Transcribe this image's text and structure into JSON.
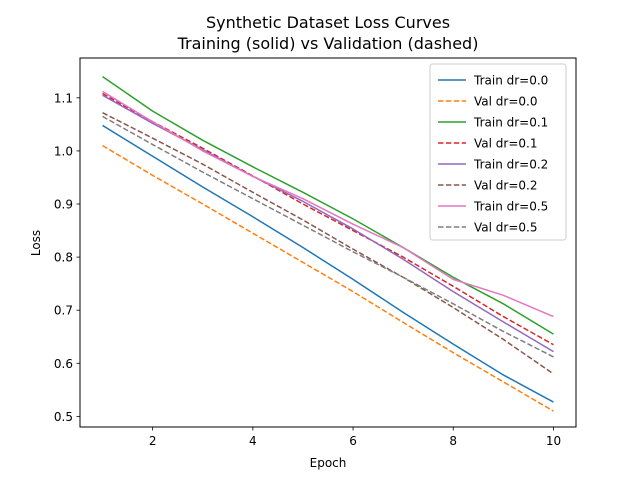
{
  "chart_data": {
    "type": "line",
    "title": "Synthetic Dataset Loss Curves",
    "subtitle": "Training (solid) vs Validation (dashed)",
    "xlabel": "Epoch",
    "ylabel": "Loss",
    "xlim": [
      0.55,
      10.45
    ],
    "ylim": [
      0.48,
      1.175
    ],
    "xticks": [
      2,
      4,
      6,
      8,
      10
    ],
    "yticks": [
      0.5,
      0.6,
      0.7,
      0.8,
      0.9,
      1.0,
      1.1
    ],
    "xtick_labels": [
      "2",
      "4",
      "6",
      "8",
      "10"
    ],
    "ytick_labels": [
      "0.5",
      "0.6",
      "0.7",
      "0.8",
      "0.9",
      "1.0",
      "1.1"
    ],
    "grid": false,
    "legend_position": "top-right",
    "x": [
      1,
      2,
      3,
      4,
      5,
      6,
      7,
      8,
      9,
      10
    ],
    "series": [
      {
        "name": "Train dr=0.0",
        "color": "#1f77b4",
        "dashed": false,
        "values": [
          1.048,
          0.99,
          0.932,
          0.876,
          0.818,
          0.758,
          0.696,
          0.636,
          0.578,
          0.527
        ]
      },
      {
        "name": "Val dr=0.0",
        "color": "#ff7f0e",
        "dashed": true,
        "values": [
          1.01,
          0.954,
          0.9,
          0.845,
          0.79,
          0.735,
          0.677,
          0.62,
          0.565,
          0.51
        ]
      },
      {
        "name": "Train dr=0.1",
        "color": "#2ca02c",
        "dashed": false,
        "values": [
          1.14,
          1.075,
          1.02,
          0.97,
          0.922,
          0.872,
          0.818,
          0.762,
          0.712,
          0.655
        ]
      },
      {
        "name": "Val dr=0.1",
        "color": "#d62728",
        "dashed": true,
        "values": [
          1.108,
          1.055,
          1.005,
          0.953,
          0.9,
          0.85,
          0.8,
          0.745,
          0.688,
          0.635
        ]
      },
      {
        "name": "Train dr=0.2",
        "color": "#9467bd",
        "dashed": false,
        "values": [
          1.105,
          1.052,
          1.002,
          0.952,
          0.905,
          0.853,
          0.796,
          0.735,
          0.678,
          0.622
        ]
      },
      {
        "name": "Val dr=0.2",
        "color": "#8c564b",
        "dashed": true,
        "values": [
          1.072,
          1.024,
          0.975,
          0.922,
          0.87,
          0.815,
          0.762,
          0.705,
          0.645,
          0.58
        ]
      },
      {
        "name": "Train dr=0.5",
        "color": "#e377c2",
        "dashed": false,
        "values": [
          1.112,
          1.055,
          1.0,
          0.952,
          0.91,
          0.862,
          0.818,
          0.758,
          0.728,
          0.688
        ]
      },
      {
        "name": "Val dr=0.5",
        "color": "#7f7f7f",
        "dashed": true,
        "values": [
          1.065,
          1.012,
          0.96,
          0.91,
          0.86,
          0.81,
          0.762,
          0.712,
          0.66,
          0.612
        ]
      }
    ]
  }
}
